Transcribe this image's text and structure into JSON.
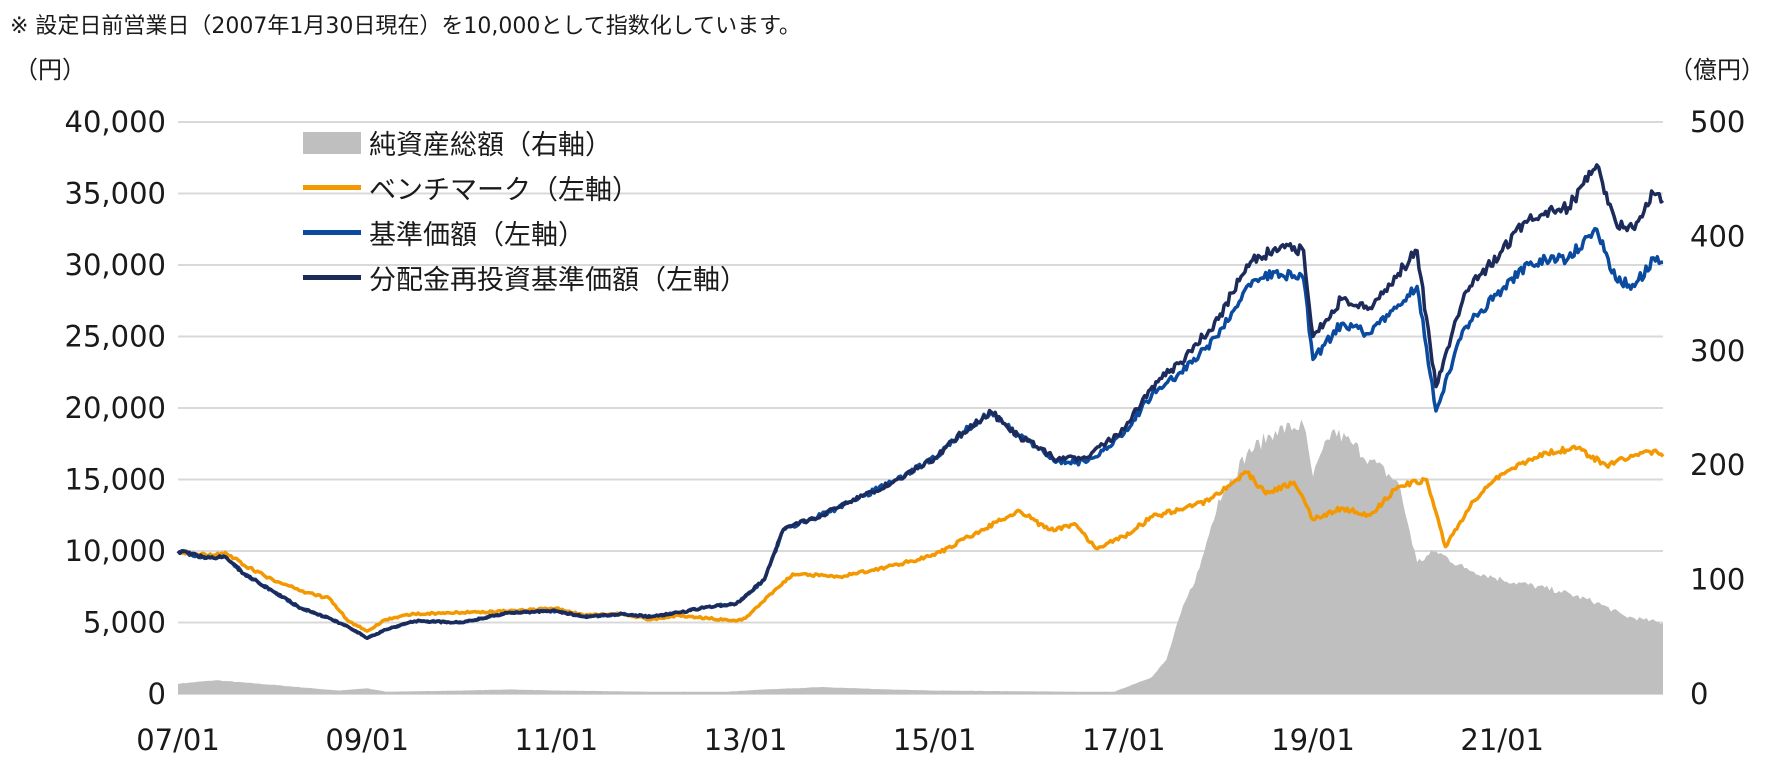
{
  "note": "※ 設定日前営業日（2007年1月30日現在）を10,000として指数化しています。",
  "left_unit": "（円）",
  "right_unit": "（億円）",
  "colors": {
    "aum": "#bfbfbf",
    "benchmark": "#f39800",
    "nav": "#0a4a9f",
    "reinvested": "#1c2b5a",
    "grid": "#d9d9d9"
  },
  "legend": [
    {
      "label": "純資産総額（右軸）",
      "kind": "area",
      "color": "#bfbfbf"
    },
    {
      "label": "ベンチマーク（左軸）",
      "kind": "line",
      "color": "#f39800"
    },
    {
      "label": "基準価額（左軸）",
      "kind": "line",
      "color": "#0a4a9f"
    },
    {
      "label": "分配金再投資基準価額（左軸）",
      "kind": "line",
      "color": "#1c2b5a"
    }
  ],
  "chart_data": {
    "type": "line",
    "x_unit": "years since 2007/01",
    "x_range": [
      0,
      15.7
    ],
    "x_ticks": [
      {
        "x": 0,
        "label": "07/01"
      },
      {
        "x": 2,
        "label": "09/01"
      },
      {
        "x": 4,
        "label": "11/01"
      },
      {
        "x": 6,
        "label": "13/01"
      },
      {
        "x": 8,
        "label": "15/01"
      },
      {
        "x": 10,
        "label": "17/01"
      },
      {
        "x": 12,
        "label": "19/01"
      },
      {
        "x": 14,
        "label": "21/01"
      }
    ],
    "y_left": {
      "range": [
        0,
        40000
      ],
      "ticks": [
        0,
        5000,
        10000,
        15000,
        20000,
        25000,
        30000,
        35000,
        40000
      ],
      "tick_labels": [
        "0",
        "5,000",
        "10,000",
        "15,000",
        "20,000",
        "25,000",
        "30,000",
        "35,000",
        "40,000"
      ]
    },
    "y_right": {
      "range": [
        0,
        500
      ],
      "ticks": [
        0,
        100,
        200,
        300,
        400,
        500
      ],
      "tick_labels": [
        "0",
        "100",
        "200",
        "300",
        "400",
        "500"
      ]
    },
    "grid": true,
    "legend_position": "top-left",
    "series": [
      {
        "name": "純資産総額（右軸）",
        "axis": "right",
        "type": "area",
        "points": [
          [
            0,
            9
          ],
          [
            0.4,
            12
          ],
          [
            1,
            8
          ],
          [
            1.7,
            3
          ],
          [
            2,
            5
          ],
          [
            2.2,
            2
          ],
          [
            3,
            3
          ],
          [
            3.5,
            4
          ],
          [
            4,
            3
          ],
          [
            5,
            2
          ],
          [
            5.8,
            2
          ],
          [
            6.2,
            4
          ],
          [
            6.8,
            6
          ],
          [
            7.5,
            4
          ],
          [
            8,
            3
          ],
          [
            9.5,
            2
          ],
          [
            9.9,
            2
          ],
          [
            10.3,
            15
          ],
          [
            10.45,
            30
          ],
          [
            10.6,
            70
          ],
          [
            10.8,
            110
          ],
          [
            11,
            170
          ],
          [
            11.3,
            210
          ],
          [
            11.6,
            230
          ],
          [
            11.9,
            235
          ],
          [
            12,
            190
          ],
          [
            12.2,
            230
          ],
          [
            12.4,
            220
          ],
          [
            12.6,
            205
          ],
          [
            12.9,
            185
          ],
          [
            13,
            150
          ],
          [
            13.1,
            115
          ],
          [
            13.3,
            125
          ],
          [
            13.6,
            110
          ],
          [
            14,
            100
          ],
          [
            14.6,
            90
          ],
          [
            15,
            80
          ],
          [
            15.3,
            68
          ],
          [
            15.5,
            65
          ],
          [
            15.7,
            62
          ]
        ]
      },
      {
        "name": "ベンチマーク（左軸）",
        "axis": "left",
        "type": "line",
        "points": [
          [
            0,
            10000
          ],
          [
            0.3,
            9700
          ],
          [
            0.5,
            9900
          ],
          [
            0.7,
            9000
          ],
          [
            1,
            8000
          ],
          [
            1.3,
            7200
          ],
          [
            1.6,
            6700
          ],
          [
            1.8,
            5100
          ],
          [
            2,
            4400
          ],
          [
            2.2,
            5200
          ],
          [
            2.5,
            5600
          ],
          [
            3,
            5700
          ],
          [
            3.5,
            5800
          ],
          [
            4,
            6000
          ],
          [
            4.3,
            5500
          ],
          [
            4.7,
            5600
          ],
          [
            5,
            5200
          ],
          [
            5.3,
            5500
          ],
          [
            5.6,
            5300
          ],
          [
            5.9,
            5100
          ],
          [
            6,
            5300
          ],
          [
            6.3,
            7200
          ],
          [
            6.5,
            8400
          ],
          [
            7,
            8200
          ],
          [
            7.5,
            8900
          ],
          [
            8,
            9700
          ],
          [
            8.5,
            11500
          ],
          [
            8.9,
            12800
          ],
          [
            9.2,
            11500
          ],
          [
            9.5,
            11800
          ],
          [
            9.7,
            10200
          ],
          [
            10,
            11000
          ],
          [
            10.3,
            12400
          ],
          [
            10.6,
            12900
          ],
          [
            10.9,
            13500
          ],
          [
            11.3,
            15500
          ],
          [
            11.5,
            14000
          ],
          [
            11.8,
            14800
          ],
          [
            12,
            12200
          ],
          [
            12.3,
            13000
          ],
          [
            12.6,
            12500
          ],
          [
            12.9,
            14500
          ],
          [
            13.2,
            15000
          ],
          [
            13.4,
            10300
          ],
          [
            13.7,
            13500
          ],
          [
            14,
            15400
          ],
          [
            14.4,
            16800
          ],
          [
            14.8,
            17200
          ],
          [
            15.1,
            16000
          ],
          [
            15.4,
            16700
          ],
          [
            15.6,
            17000
          ],
          [
            15.7,
            16600
          ]
        ]
      },
      {
        "name": "基準価額（左軸）",
        "axis": "left",
        "type": "line",
        "points": [
          [
            0,
            10000
          ],
          [
            0.3,
            9500
          ],
          [
            0.5,
            9600
          ],
          [
            0.7,
            8400
          ],
          [
            1,
            7200
          ],
          [
            1.3,
            6000
          ],
          [
            1.6,
            5300
          ],
          [
            1.8,
            4700
          ],
          [
            2,
            3900
          ],
          [
            2.2,
            4500
          ],
          [
            2.5,
            5100
          ],
          [
            3,
            5000
          ],
          [
            3.5,
            5700
          ],
          [
            4,
            5800
          ],
          [
            4.3,
            5400
          ],
          [
            4.7,
            5600
          ],
          [
            5,
            5400
          ],
          [
            5.3,
            5700
          ],
          [
            5.6,
            6100
          ],
          [
            5.9,
            6300
          ],
          [
            6.2,
            8000
          ],
          [
            6.4,
            11500
          ],
          [
            6.8,
            12500
          ],
          [
            7.2,
            13700
          ],
          [
            7.6,
            15000
          ],
          [
            8,
            16500
          ],
          [
            8.3,
            18300
          ],
          [
            8.6,
            19700
          ],
          [
            8.9,
            18000
          ],
          [
            9.3,
            16300
          ],
          [
            9.6,
            16200
          ],
          [
            10,
            18200
          ],
          [
            10.3,
            21000
          ],
          [
            10.6,
            22500
          ],
          [
            11,
            25000
          ],
          [
            11.3,
            28500
          ],
          [
            11.6,
            29500
          ],
          [
            11.9,
            29000
          ],
          [
            12,
            23400
          ],
          [
            12.3,
            25900
          ],
          [
            12.6,
            25200
          ],
          [
            12.9,
            27200
          ],
          [
            13.1,
            28500
          ],
          [
            13.3,
            19800
          ],
          [
            13.6,
            25600
          ],
          [
            14,
            28300
          ],
          [
            14.3,
            30200
          ],
          [
            14.7,
            30500
          ],
          [
            15,
            32500
          ],
          [
            15.2,
            29000
          ],
          [
            15.4,
            28500
          ],
          [
            15.6,
            30500
          ],
          [
            15.7,
            30200
          ]
        ]
      },
      {
        "name": "分配金再投資基準価額（左軸）",
        "axis": "left",
        "type": "line",
        "points": [
          [
            0,
            10000
          ],
          [
            0.3,
            9500
          ],
          [
            0.5,
            9600
          ],
          [
            0.7,
            8400
          ],
          [
            1,
            7200
          ],
          [
            1.3,
            6000
          ],
          [
            1.6,
            5300
          ],
          [
            1.8,
            4700
          ],
          [
            2,
            3900
          ],
          [
            2.2,
            4500
          ],
          [
            2.5,
            5100
          ],
          [
            3,
            5000
          ],
          [
            3.5,
            5700
          ],
          [
            4,
            5800
          ],
          [
            4.3,
            5400
          ],
          [
            4.7,
            5600
          ],
          [
            5,
            5400
          ],
          [
            5.3,
            5700
          ],
          [
            5.6,
            6100
          ],
          [
            5.9,
            6300
          ],
          [
            6.2,
            8000
          ],
          [
            6.4,
            11500
          ],
          [
            6.8,
            12500
          ],
          [
            7.2,
            13700
          ],
          [
            7.6,
            15000
          ],
          [
            8,
            16500
          ],
          [
            8.3,
            18300
          ],
          [
            8.6,
            19700
          ],
          [
            8.9,
            18000
          ],
          [
            9.3,
            16400
          ],
          [
            9.6,
            16500
          ],
          [
            10,
            18500
          ],
          [
            10.3,
            21500
          ],
          [
            10.6,
            23200
          ],
          [
            11,
            26200
          ],
          [
            11.3,
            30000
          ],
          [
            11.6,
            31200
          ],
          [
            11.9,
            31000
          ],
          [
            12,
            25000
          ],
          [
            12.3,
            27600
          ],
          [
            12.6,
            27000
          ],
          [
            12.9,
            29400
          ],
          [
            13.1,
            31000
          ],
          [
            13.3,
            21500
          ],
          [
            13.6,
            28000
          ],
          [
            14,
            31000
          ],
          [
            14.3,
            33500
          ],
          [
            14.7,
            34000
          ],
          [
            15,
            37000
          ],
          [
            15.2,
            33000
          ],
          [
            15.4,
            32500
          ],
          [
            15.6,
            35000
          ],
          [
            15.7,
            34500
          ]
        ]
      }
    ]
  }
}
